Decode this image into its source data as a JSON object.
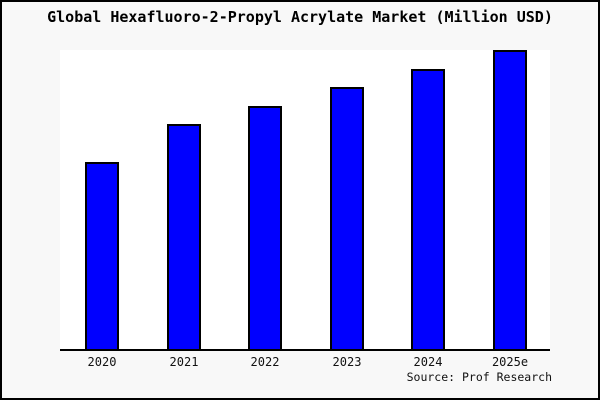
{
  "title": "Global Hexafluoro-2-Propyl Acrylate Market (Million USD)",
  "source": "Source: Prof Research",
  "colors": {
    "background": "#f8f8f8",
    "plot_background": "#ffffff",
    "bar_fill": "#0000ff",
    "bar_border": "#000000",
    "axis": "#000000",
    "text": "#000000"
  },
  "chart_data": {
    "type": "bar",
    "title": "Global Hexafluoro-2-Propyl Acrylate Market (Million USD)",
    "categories": [
      "2020",
      "2021",
      "2022",
      "2023",
      "2024",
      "2025e"
    ],
    "values": [
      62.4,
      75.1,
      81.3,
      87.6,
      93.5,
      100
    ],
    "values_note": "No y-axis scale is rendered in the chart; values are bar heights indexed to 2025e = 100",
    "xlabel": "",
    "ylabel": "",
    "ylim": [
      0,
      100
    ],
    "grid": false,
    "legend_position": "none",
    "bar_color": "#0000ff",
    "bar_border_color": "#000000",
    "plot_background": "#ffffff",
    "annotations": [
      "Source: Prof Research"
    ]
  }
}
